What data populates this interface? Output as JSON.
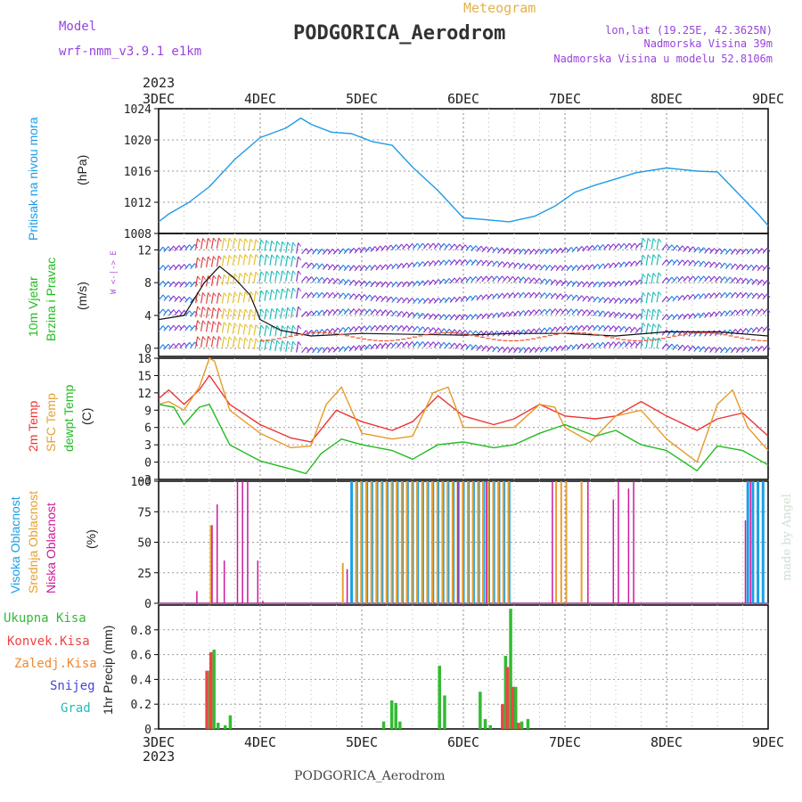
{
  "header": {
    "title": "PODGORICA_Aerodrom",
    "subtitle": "Meteogram",
    "model_label": "Model",
    "model_name": "wrf-nmm_v3.9.1  e1km",
    "lonlat": "lon,lat (19.25E, 42.3625N)",
    "elevation": "Nadmorska Visina 39m",
    "model_elevation": "Nadmorska Visina u modelu 52.8106m"
  },
  "footer": {
    "station": "PODGORICA_Aerodrom",
    "credit": "made by Angel"
  },
  "colors": {
    "pressure": "#1e9be6",
    "wind_legend": "#22bb22",
    "temp2m": "#ee3333",
    "sfc": "#e69a2a",
    "dew": "#22bb22",
    "cloud_high": "#1aa0e6",
    "cloud_mid": "#e6a030",
    "cloud_low": "#cc1a99",
    "precip_total": "#33bb33",
    "precip_conv": "#ee4444",
    "precip_frz": "#ee8833",
    "snow": "#4444dd",
    "grad": "#22bbbb",
    "title_purple": "#9944dd",
    "meteogram": "#e6b04a"
  },
  "time_axis": {
    "year": "2023",
    "days": [
      "3DEC",
      "4DEC",
      "5DEC",
      "6DEC",
      "7DEC",
      "8DEC",
      "9DEC"
    ]
  },
  "chart_data": [
    {
      "type": "line",
      "panel": "pressure",
      "ylabels": [
        "Pritisak na nivou mora",
        "(hPa)"
      ],
      "ylim": [
        1008,
        1024
      ],
      "yticks": [
        1008,
        1012,
        1016,
        1020,
        1024
      ],
      "grid": true,
      "series": [
        {
          "x": [
            0,
            0.1,
            0.3,
            0.5,
            0.75,
            1.0,
            1.25,
            1.4,
            1.5,
            1.7,
            1.9,
            2.1,
            2.3,
            2.5,
            2.75,
            3.0,
            3.2,
            3.45,
            3.7,
            3.9,
            4.1,
            4.3,
            4.5,
            4.7,
            5.0,
            5.3,
            5.5,
            5.7,
            5.9,
            6.0
          ],
          "values": [
            1009.5,
            1010.5,
            1012,
            1014,
            1017.5,
            1020.3,
            1021.5,
            1022.8,
            1022,
            1021,
            1020.8,
            1019.8,
            1019.3,
            1016.5,
            1013.5,
            1010,
            1009.8,
            1009.5,
            1010.2,
            1011.5,
            1013.3,
            1014.2,
            1015,
            1015.8,
            1016.4,
            1016,
            1015.9,
            1013.2,
            1010.5,
            1009
          ]
        }
      ]
    },
    {
      "type": "line",
      "panel": "wind",
      "ylabels": [
        "10m Vjetar",
        "Brzina i Pravac",
        "(m/s)"
      ],
      "ylim": [
        -1,
        14
      ],
      "yticks": [
        0,
        4,
        8,
        12
      ],
      "direction_legend": "W <-|-> E",
      "grid": true,
      "series": [
        {
          "name": "speed",
          "x": [
            0,
            0.25,
            0.45,
            0.6,
            0.75,
            0.9,
            1.0,
            1.2,
            1.5,
            2.0,
            2.5,
            3.0,
            3.5,
            4.0,
            4.5,
            5.0,
            5.5,
            6.0
          ],
          "values": [
            3.5,
            4.0,
            8.0,
            10.0,
            8.5,
            6.5,
            3.5,
            2.2,
            1.5,
            1.8,
            1.7,
            1.6,
            1.8,
            1.8,
            1.5,
            2.0,
            2.0,
            1.5
          ]
        }
      ]
    },
    {
      "type": "line",
      "panel": "temperature",
      "ylabels": [
        "2m Temp",
        "SFC Temp",
        "dewpt Temp",
        "(C)"
      ],
      "ylim": [
        -3,
        18
      ],
      "yticks": [
        -3,
        0,
        3,
        6,
        9,
        12,
        15,
        18
      ],
      "grid": true,
      "series": [
        {
          "name": "2m Temp",
          "x": [
            0,
            0.1,
            0.25,
            0.4,
            0.5,
            0.7,
            1.0,
            1.3,
            1.5,
            1.75,
            2.0,
            2.3,
            2.5,
            2.75,
            3.0,
            3.3,
            3.5,
            3.75,
            4.0,
            4.3,
            4.5,
            4.75,
            5.0,
            5.3,
            5.5,
            5.75,
            6.0
          ],
          "values": [
            11,
            12.5,
            10,
            12.5,
            15,
            10,
            6.5,
            4.2,
            3.5,
            9,
            7,
            5.5,
            7,
            11.5,
            8,
            6.5,
            7.5,
            10,
            8,
            7.5,
            8,
            10.5,
            8,
            5.5,
            7.5,
            8.5,
            4.5
          ]
        },
        {
          "name": "SFC Temp",
          "x": [
            0,
            0.1,
            0.25,
            0.4,
            0.5,
            0.55,
            0.7,
            1.0,
            1.3,
            1.5,
            1.65,
            1.8,
            2.0,
            2.3,
            2.5,
            2.7,
            2.85,
            3.0,
            3.3,
            3.5,
            3.75,
            3.9,
            4.0,
            4.25,
            4.5,
            4.75,
            5.0,
            5.3,
            5.5,
            5.65,
            5.8,
            6.0
          ],
          "values": [
            10,
            10.5,
            9,
            13,
            18,
            17.5,
            9,
            5,
            2.5,
            2.8,
            10,
            13,
            5,
            4,
            4.5,
            12,
            13,
            6,
            6,
            6,
            10,
            9.5,
            6,
            3.5,
            8,
            9,
            4,
            0,
            10,
            12.5,
            6,
            2
          ]
        },
        {
          "name": "dewpt Temp",
          "x": [
            0,
            0.15,
            0.25,
            0.4,
            0.5,
            0.7,
            1.0,
            1.3,
            1.45,
            1.6,
            1.8,
            2.0,
            2.3,
            2.5,
            2.75,
            3.0,
            3.3,
            3.5,
            3.75,
            4.0,
            4.3,
            4.5,
            4.75,
            5.0,
            5.3,
            5.5,
            5.75,
            6.0
          ],
          "values": [
            10,
            9.5,
            6.5,
            9.5,
            10,
            3,
            0.2,
            -1.2,
            -2,
            1.5,
            4,
            3,
            2,
            0.5,
            3,
            3.5,
            2.5,
            3,
            5,
            6.5,
            4.5,
            5.5,
            3,
            2,
            -1.5,
            2.8,
            2,
            -0.5
          ]
        }
      ]
    },
    {
      "type": "bar",
      "panel": "cloud",
      "ylabels": [
        "Visoka Oblacnost",
        "Srednja Oblacnost",
        "Niska Oblacnost",
        "(%)"
      ],
      "ylim": [
        0,
        100
      ],
      "yticks": [
        0,
        25,
        50,
        75,
        100
      ],
      "grid": true,
      "series": [
        {
          "name": "Visoka Oblacnost",
          "x": [
            1.9,
            1.95,
            2.0,
            2.05,
            2.1,
            2.15,
            2.2,
            2.25,
            2.3,
            2.35,
            2.4,
            2.45,
            2.5,
            2.55,
            2.6,
            2.65,
            2.7,
            2.75,
            2.8,
            2.85,
            2.9,
            2.95,
            3.0,
            3.05,
            3.1,
            3.15,
            3.2,
            3.25,
            3.3,
            3.35,
            3.4,
            3.45,
            5.8,
            5.85,
            5.9,
            5.95
          ],
          "values": [
            100,
            100,
            100,
            100,
            100,
            100,
            100,
            100,
            100,
            100,
            100,
            100,
            100,
            100,
            100,
            100,
            100,
            100,
            100,
            100,
            100,
            100,
            100,
            100,
            100,
            100,
            100,
            100,
            100,
            100,
            100,
            100,
            100,
            100,
            100,
            100
          ]
        },
        {
          "name": "Srednja Oblacnost",
          "x": [
            0.5,
            1.8,
            1.93,
            1.98,
            2.03,
            2.08,
            2.13,
            2.18,
            2.23,
            2.28,
            2.33,
            2.38,
            2.43,
            2.48,
            2.53,
            2.58,
            2.63,
            2.68,
            2.73,
            2.78,
            2.83,
            2.88,
            2.93,
            2.98,
            3.03,
            3.08,
            3.13,
            3.18,
            3.23,
            3.28,
            3.33,
            3.38,
            3.43,
            3.9,
            3.95,
            4.0,
            4.15
          ],
          "values": [
            64,
            33,
            100,
            100,
            100,
            100,
            100,
            100,
            100,
            100,
            100,
            100,
            100,
            100,
            100,
            100,
            100,
            100,
            100,
            100,
            100,
            100,
            100,
            100,
            100,
            100,
            100,
            100,
            100,
            100,
            100,
            100,
            100,
            100,
            100,
            100,
            100
          ]
        },
        {
          "name": "Niska Oblacnost",
          "x": [
            0.35,
            0.5,
            0.55,
            0.62,
            0.75,
            0.8,
            0.85,
            0.95,
            1.0,
            1.83,
            2.92,
            3.2,
            3.85,
            4.2,
            4.45,
            4.5,
            4.6,
            4.65,
            5.75,
            5.8
          ],
          "values": [
            10,
            64,
            81,
            35,
            100,
            100,
            100,
            35,
            2,
            28,
            100,
            100,
            100,
            100,
            85,
            100,
            94,
            100,
            68,
            100
          ]
        }
      ]
    },
    {
      "type": "bar",
      "panel": "precip",
      "ylabels": [
        "Ukupna Kisa",
        "Konvek.Kisa",
        "Zaledj.Kisa",
        "Snijeg",
        "Grad",
        "1hr Precip (mm)"
      ],
      "ylim": [
        0,
        1
      ],
      "yticks": [
        0,
        0.2,
        0.4,
        0.6,
        0.8
      ],
      "grid": true,
      "series": [
        {
          "name": "Ukupna Kisa",
          "x": [
            0.49,
            0.53,
            0.57,
            0.64,
            0.69,
            2.2,
            2.28,
            2.32,
            2.36,
            2.75,
            2.8,
            3.15,
            3.2,
            3.25,
            3.4,
            3.45,
            3.5,
            3.56,
            3.62
          ],
          "values": [
            0.47,
            0.64,
            0.05,
            0.03,
            0.11,
            0.06,
            0.23,
            0.21,
            0.06,
            0.51,
            0.27,
            0.3,
            0.08,
            0.03,
            0.59,
            0.97,
            0.34,
            0.06,
            0.08
          ]
        },
        {
          "name": "Konvek.Kisa",
          "x": [
            0.49,
            0.53,
            3.4,
            3.45,
            3.5,
            3.56
          ],
          "values": [
            0.47,
            0.62,
            0.2,
            0.5,
            0.34,
            0.05
          ]
        }
      ]
    }
  ]
}
